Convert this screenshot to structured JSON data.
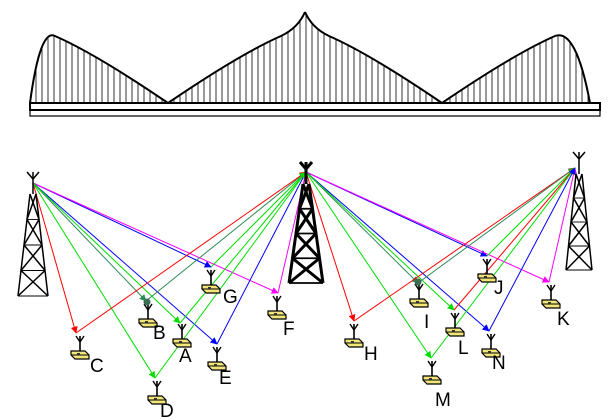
{
  "nodes": [
    {
      "id": "A",
      "label": "A"
    },
    {
      "id": "B",
      "label": "B"
    },
    {
      "id": "C",
      "label": "C"
    },
    {
      "id": "D",
      "label": "D"
    },
    {
      "id": "E",
      "label": "E"
    },
    {
      "id": "F",
      "label": "F"
    },
    {
      "id": "G",
      "label": "G"
    },
    {
      "id": "H",
      "label": "H"
    },
    {
      "id": "I",
      "label": "I"
    },
    {
      "id": "J",
      "label": "J"
    },
    {
      "id": "K",
      "label": "K"
    },
    {
      "id": "L",
      "label": "L"
    },
    {
      "id": "M",
      "label": "M"
    },
    {
      "id": "N",
      "label": "N"
    }
  ],
  "towers": [
    "left-tower",
    "center-tower",
    "right-tower"
  ],
  "link_colors": {
    "red": "#ff0000",
    "green": "#00dd00",
    "blue": "#0000ff",
    "magenta": "#ff00ff",
    "teal": "#2e8b57"
  },
  "icons": [
    "suspension-bridge",
    "lattice-tower-antenna",
    "sensor-node-antenna"
  ]
}
